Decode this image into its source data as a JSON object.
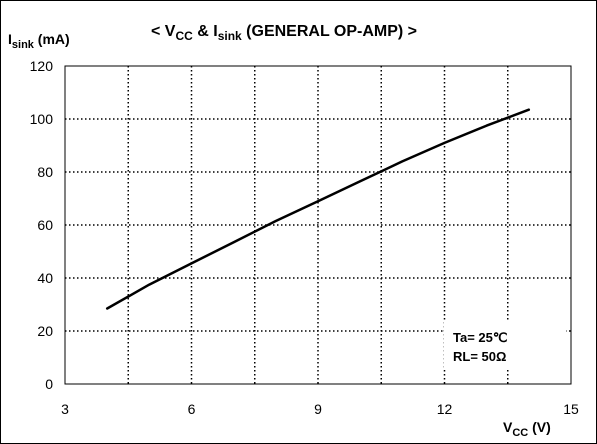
{
  "chart_data": {
    "type": "line",
    "title": {
      "open": "< V",
      "vcc_sub": "CC",
      "amp": " & I",
      "isink_sub": "sink",
      "rest": " (GENERAL OP-AMP) >"
    },
    "ylabel": {
      "main": "I",
      "sub": "sink",
      "unit": " (mA)"
    },
    "xlabel": {
      "main": "V",
      "sub": "CC",
      "unit": " (V)"
    },
    "xlim": [
      3,
      15
    ],
    "ylim": [
      0,
      120
    ],
    "xticks": [
      3,
      6,
      9,
      12,
      15
    ],
    "yticks": [
      0,
      20,
      40,
      60,
      80,
      100,
      120
    ],
    "grid": true,
    "annotation": [
      "Ta= 25℃",
      "RL= 50Ω"
    ],
    "series": [
      {
        "x": [
          4,
          5,
          6,
          7,
          8,
          9,
          10,
          11,
          12,
          13,
          14
        ],
        "values": [
          28.5,
          37.5,
          45.5,
          53.5,
          61.5,
          69,
          76.5,
          84,
          91,
          97.5,
          103.5
        ]
      }
    ]
  }
}
